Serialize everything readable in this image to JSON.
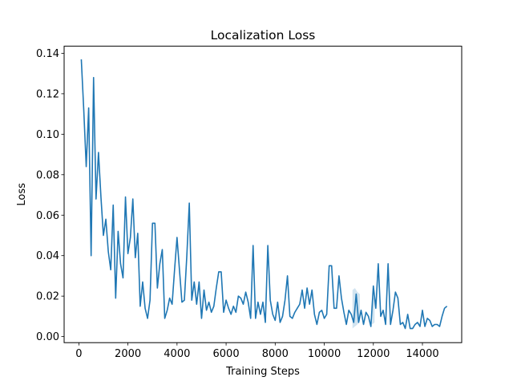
{
  "chart_data": {
    "type": "line",
    "title": "Localization Loss",
    "xlabel": "Training Steps",
    "ylabel": "Loss",
    "xlim": [
      -600,
      15600
    ],
    "ylim": [
      -0.003,
      0.1435
    ],
    "x_ticks": [
      0,
      2000,
      4000,
      6000,
      8000,
      10000,
      12000,
      14000
    ],
    "x_tick_labels": [
      "0",
      "2000",
      "4000",
      "6000",
      "8000",
      "10000",
      "12000",
      "14000"
    ],
    "y_ticks": [
      0.0,
      0.02,
      0.04,
      0.06,
      0.08,
      0.1,
      0.12,
      0.14
    ],
    "y_tick_labels": [
      "0.00",
      "0.02",
      "0.04",
      "0.06",
      "0.08",
      "0.10",
      "0.12",
      "0.14"
    ],
    "grid": false,
    "legend": "none",
    "colors": {
      "line": "#1f77b4",
      "band": "#1f77b4",
      "axes": "#000000",
      "background": "#ffffff"
    },
    "series": [
      {
        "x": [
          100,
          200,
          300,
          400,
          500,
          600,
          700,
          800,
          900,
          1000,
          1100,
          1200,
          1300,
          1400,
          1500,
          1600,
          1700,
          1800,
          1900,
          2000,
          2100,
          2200,
          2300,
          2400,
          2500,
          2600,
          2700,
          2800,
          2900,
          3000,
          3100,
          3200,
          3300,
          3400,
          3500,
          3600,
          3700,
          3800,
          3900,
          4000,
          4100,
          4200,
          4300,
          4400,
          4500,
          4600,
          4700,
          4800,
          4900,
          5000,
          5100,
          5200,
          5300,
          5400,
          5500,
          5600,
          5700,
          5800,
          5900,
          6000,
          6100,
          6200,
          6300,
          6400,
          6500,
          6600,
          6700,
          6800,
          6900,
          7000,
          7100,
          7200,
          7300,
          7400,
          7500,
          7600,
          7700,
          7800,
          7900,
          8000,
          8100,
          8200,
          8300,
          8400,
          8500,
          8600,
          8700,
          8800,
          8900,
          9000,
          9100,
          9200,
          9300,
          9400,
          9500,
          9600,
          9700,
          9800,
          9900,
          10000,
          10100,
          10200,
          10300,
          10400,
          10500,
          10600,
          10700,
          10800,
          10900,
          11000,
          11100,
          11200,
          11300,
          11400,
          11500,
          11600,
          11700,
          11800,
          11900,
          12000,
          12100,
          12200,
          12300,
          12400,
          12500,
          12600,
          12700,
          12800,
          12900,
          13000,
          13100,
          13200,
          13300,
          13400,
          13500,
          13600,
          13700,
          13800,
          13900,
          14000,
          14100,
          14200,
          14300,
          14400,
          14500,
          14600,
          14700,
          14800,
          14900,
          15000
        ],
        "y": [
          0.137,
          0.112,
          0.084,
          0.113,
          0.04,
          0.128,
          0.068,
          0.091,
          0.069,
          0.05,
          0.058,
          0.042,
          0.033,
          0.065,
          0.019,
          0.052,
          0.036,
          0.029,
          0.069,
          0.041,
          0.049,
          0.068,
          0.039,
          0.051,
          0.015,
          0.027,
          0.014,
          0.009,
          0.018,
          0.056,
          0.056,
          0.024,
          0.036,
          0.043,
          0.009,
          0.013,
          0.019,
          0.016,
          0.033,
          0.049,
          0.033,
          0.017,
          0.018,
          0.04,
          0.066,
          0.018,
          0.027,
          0.016,
          0.027,
          0.009,
          0.023,
          0.013,
          0.017,
          0.012,
          0.015,
          0.024,
          0.032,
          0.032,
          0.012,
          0.018,
          0.014,
          0.011,
          0.015,
          0.012,
          0.02,
          0.019,
          0.016,
          0.022,
          0.017,
          0.009,
          0.045,
          0.009,
          0.017,
          0.011,
          0.017,
          0.007,
          0.045,
          0.018,
          0.011,
          0.008,
          0.017,
          0.007,
          0.01,
          0.018,
          0.03,
          0.01,
          0.009,
          0.012,
          0.014,
          0.016,
          0.023,
          0.014,
          0.024,
          0.016,
          0.023,
          0.011,
          0.006,
          0.012,
          0.013,
          0.009,
          0.011,
          0.035,
          0.035,
          0.014,
          0.014,
          0.03,
          0.019,
          0.012,
          0.006,
          0.013,
          0.011,
          0.007,
          0.021,
          0.007,
          0.013,
          0.006,
          0.012,
          0.01,
          0.005,
          0.025,
          0.014,
          0.036,
          0.01,
          0.013,
          0.006,
          0.036,
          0.006,
          0.013,
          0.022,
          0.019,
          0.006,
          0.007,
          0.004,
          0.011,
          0.004,
          0.004,
          0.006,
          0.007,
          0.005,
          0.013,
          0.005,
          0.009,
          0.008,
          0.005,
          0.006,
          0.006,
          0.005,
          0.01,
          0.014,
          0.015
        ]
      }
    ],
    "bands": [
      {
        "x": [
          11150,
          11250,
          11350,
          11450
        ],
        "low": [
          0.004,
          0.005,
          0.006,
          0.008
        ],
        "high": [
          0.023,
          0.024,
          0.022,
          0.021
        ]
      },
      {
        "x": [
          11950,
          12050
        ],
        "low": [
          0.006,
          0.007
        ],
        "high": [
          0.018,
          0.02
        ]
      }
    ]
  }
}
